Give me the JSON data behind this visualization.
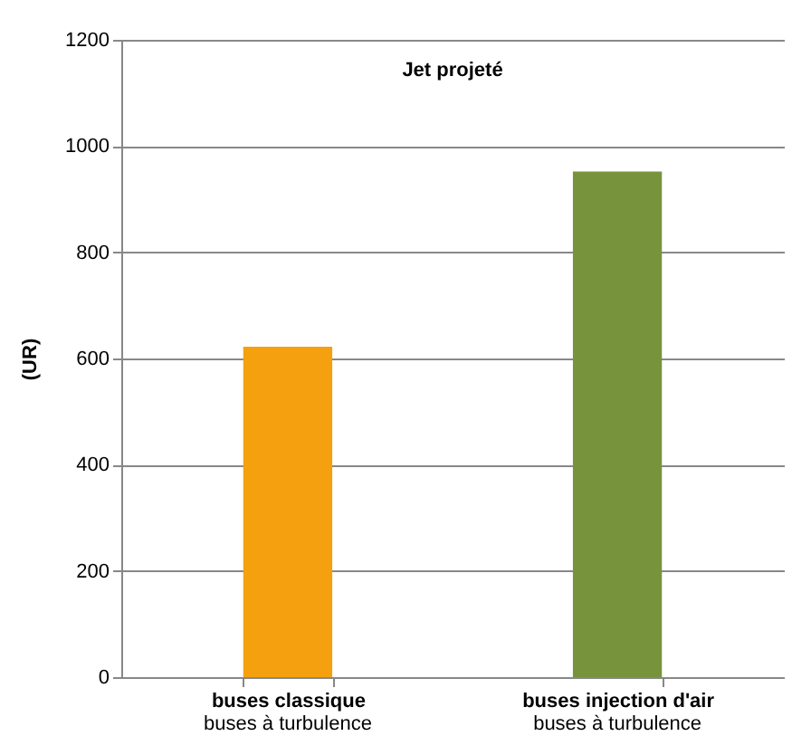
{
  "chart_data": {
    "type": "bar",
    "title": "Jet projeté",
    "ylabel": "(UR)",
    "categories": [
      "buses classique\nbuses à  turbulence",
      "buses injection d'air\nbuses à turbulence"
    ],
    "values": [
      622,
      952
    ],
    "colors": [
      "#f5a00f",
      "#77933c"
    ],
    "ylim": [
      0,
      1200
    ],
    "yticks": [
      0,
      200,
      400,
      600,
      800,
      1000,
      1200
    ],
    "grid": "y"
  }
}
